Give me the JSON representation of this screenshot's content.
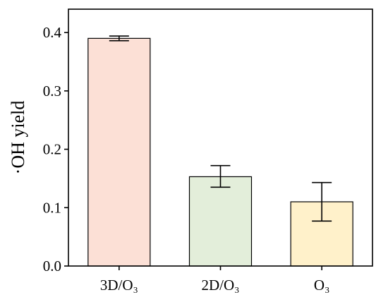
{
  "chart_data": {
    "type": "bar",
    "categories": [
      "3D/O₃",
      "2D/O₃",
      "O₃"
    ],
    "values": [
      0.39,
      0.153,
      0.11
    ],
    "error_upper": [
      0.394,
      0.172,
      0.143
    ],
    "error_lower": [
      0.386,
      0.135,
      0.077
    ],
    "bar_colors": [
      "#FCE0D6",
      "#E3EEDA",
      "#FFF1CA"
    ],
    "edge_color": "#000000",
    "ylabel": "·OH yield",
    "xlabel": "",
    "title": "",
    "ylim": [
      0.0,
      0.44
    ],
    "yticks": [
      "0.0",
      "0.1",
      "0.2",
      "0.3",
      "0.4"
    ],
    "ytick_values": [
      0.0,
      0.1,
      0.2,
      0.3,
      0.4
    ],
    "grid": false,
    "legend": "none"
  }
}
